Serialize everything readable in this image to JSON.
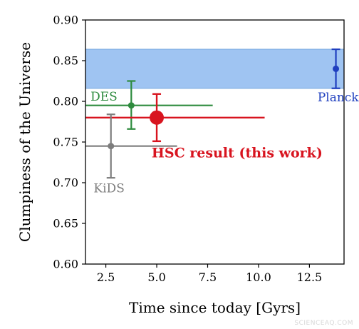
{
  "chart_data": {
    "type": "scatter",
    "title": "",
    "xlabel": "Time since today [Gyrs]",
    "ylabel": "Clumpiness of the Universe",
    "xlim": [
      1.5,
      14.2
    ],
    "ylim": [
      0.6,
      0.9
    ],
    "xticks": [
      2.5,
      5.0,
      7.5,
      10.0,
      12.5
    ],
    "xtick_labels": [
      "2.5",
      "5.0",
      "7.5",
      "10.0",
      "12.5"
    ],
    "yticks": [
      0.6,
      0.65,
      0.7,
      0.75,
      0.8,
      0.85,
      0.9
    ],
    "ytick_labels": [
      "0.60",
      "0.65",
      "0.70",
      "0.75",
      "0.80",
      "0.85",
      "0.90"
    ],
    "grid": false,
    "band": {
      "label_ref": "Planck",
      "y_low": 0.816,
      "y_high": 0.864,
      "color": "#9fc4f2",
      "edge_color": "#6fa3de"
    },
    "series": [
      {
        "name": "Planck",
        "label": "Planck",
        "x": 13.8,
        "y": 0.84,
        "yerr": [
          0.024,
          0.024
        ],
        "xerr": [
          0,
          0
        ],
        "color": "#1f3fbf",
        "marker_size": 4.5,
        "label_x": 12.9,
        "label_y": 0.8,
        "label_class": "ann-label"
      },
      {
        "name": "DES",
        "label": "DES",
        "x": 3.75,
        "y": 0.795,
        "yerr": [
          0.029,
          0.03
        ],
        "xerr": [
          2.25,
          4.0
        ],
        "color": "#2e8b3e",
        "marker_size": 4.5,
        "label_x": 1.75,
        "label_y": 0.801,
        "label_class": "ann-label"
      },
      {
        "name": "HSC result (this work)",
        "label": "HSC result (this work)",
        "x": 5.0,
        "y": 0.78,
        "yerr": [
          0.029,
          0.029
        ],
        "xerr": [
          3.5,
          5.3
        ],
        "color": "#d8141f",
        "marker_size": 10,
        "label_x": 4.75,
        "label_y": 0.731,
        "label_class": "hsc-label"
      },
      {
        "name": "KiDS",
        "label": "KiDS",
        "x": 2.75,
        "y": 0.745,
        "yerr": [
          0.039,
          0.039
        ],
        "xerr": [
          1.25,
          3.25
        ],
        "color": "#7d7d7d",
        "marker_size": 4.5,
        "label_x": 1.9,
        "label_y": 0.688,
        "label_class": "ann-label"
      }
    ]
  },
  "watermark": "SCIENCEAQ.COM"
}
